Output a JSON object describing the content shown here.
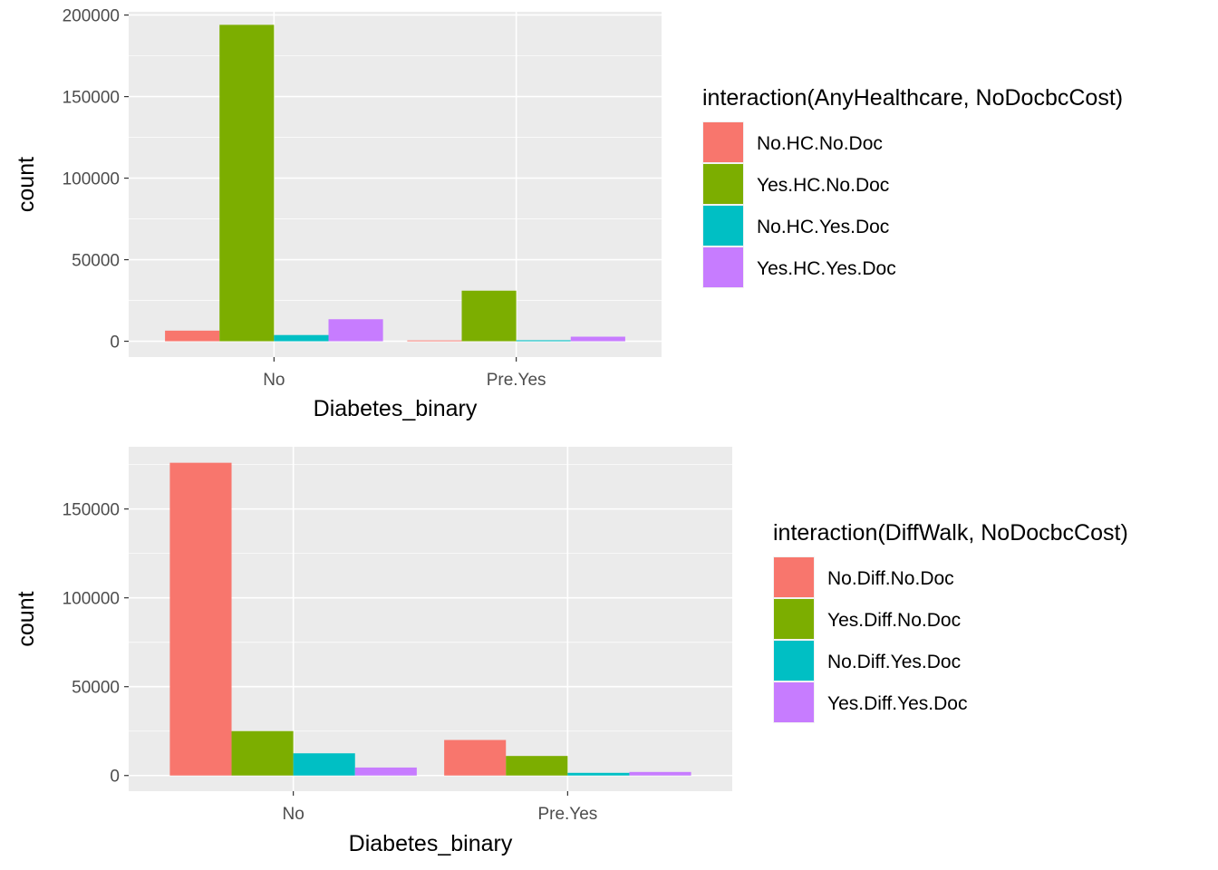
{
  "chart_data": [
    {
      "type": "bar",
      "categories": [
        "No",
        "Pre.Yes"
      ],
      "xlabel": "Diabetes_binary",
      "ylabel": "count",
      "ylim": [
        -9700,
        202000
      ],
      "yticks": [
        0,
        50000,
        100000,
        150000,
        200000
      ],
      "yticklabels": [
        "0",
        "50000",
        "100000",
        "150000",
        "200000"
      ],
      "grid": true,
      "legend_position": "right",
      "legend_title": "interaction(AnyHealthcare, NoDocbcCost)",
      "series": [
        {
          "name": "No.HC.No.Doc",
          "color": "#F8766D",
          "values": [
            6500,
            500
          ]
        },
        {
          "name": "Yes.HC.No.Doc",
          "color": "#7CAE00",
          "values": [
            194000,
            31000
          ]
        },
        {
          "name": "No.HC.Yes.Doc",
          "color": "#00BFC4",
          "values": [
            3800,
            600
          ]
        },
        {
          "name": "Yes.HC.Yes.Doc",
          "color": "#C77CFF",
          "values": [
            13500,
            2800
          ]
        }
      ]
    },
    {
      "type": "bar",
      "categories": [
        "No",
        "Pre.Yes"
      ],
      "xlabel": "Diabetes_binary",
      "ylabel": "count",
      "ylim": [
        -8800,
        185000
      ],
      "yticks": [
        0,
        50000,
        100000,
        150000
      ],
      "yticklabels": [
        "0",
        "50000",
        "100000",
        "150000"
      ],
      "grid": true,
      "legend_position": "right",
      "legend_title": "interaction(DiffWalk, NoDocbcCost)",
      "series": [
        {
          "name": "No.Diff.No.Doc",
          "color": "#F8766D",
          "values": [
            176000,
            20000
          ]
        },
        {
          "name": "Yes.Diff.No.Doc",
          "color": "#7CAE00",
          "values": [
            25000,
            11000
          ]
        },
        {
          "name": "No.Diff.Yes.Doc",
          "color": "#00BFC4",
          "values": [
            12500,
            1500
          ]
        },
        {
          "name": "Yes.Diff.Yes.Doc",
          "color": "#C77CFF",
          "values": [
            4500,
            2000
          ]
        }
      ]
    }
  ]
}
